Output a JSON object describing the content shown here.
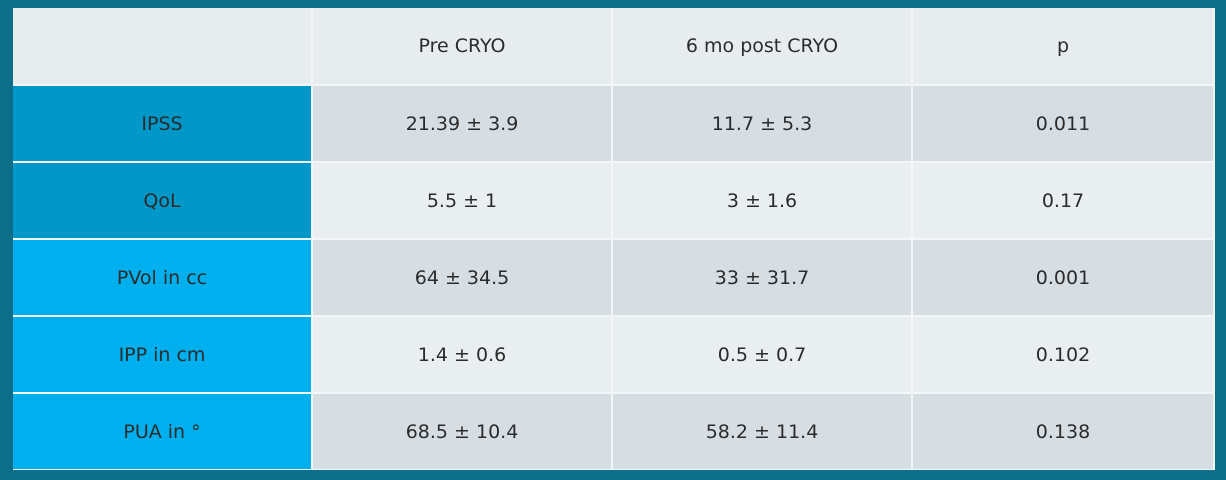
{
  "table": {
    "header": [
      "Pre CRYO",
      "6 mo post CRYO",
      "p"
    ],
    "rows": [
      {
        "label": "IPSS",
        "cells": [
          "21.39 ± 3.9",
          "11.7 ± 5.3",
          "0.011"
        ]
      },
      {
        "label": "QoL",
        "cells": [
          "5.5 ± 1",
          "3 ± 1.6",
          "0.17"
        ]
      },
      {
        "label": "PVol in cc",
        "cells": [
          "64 ± 34.5",
          "33 ± 31.7",
          "0.001"
        ]
      },
      {
        "label": "IPP in cm",
        "cells": [
          "1.4 ± 0.6",
          "0.5 ± 0.7",
          "0.102"
        ]
      },
      {
        "label": "PUA in °",
        "cells": [
          "68.5 ± 10.4",
          "58.2 ± 11.4",
          "0.138"
        ]
      }
    ]
  }
}
